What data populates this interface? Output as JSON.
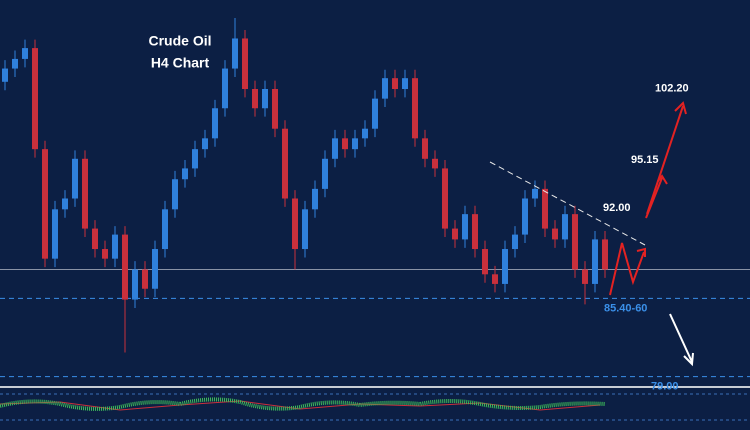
{
  "chart_data": {
    "type": "candlestick",
    "title": [
      "Crude Oil",
      "H4 Chart"
    ],
    "ylim": [
      78.3,
      109.3
    ],
    "up_color": "#2f80dc",
    "down_color": "#c9303c",
    "open": [
      103.5,
      104.6,
      105.4,
      106.3,
      97.9,
      88.8,
      92.9,
      93.8,
      97.1,
      91.3,
      89.6,
      88.8,
      90.8,
      85.4,
      87.9,
      86.3,
      89.6,
      92.9,
      95.4,
      96.3,
      97.9,
      98.8,
      101.3,
      104.6,
      107.1,
      102.9,
      101.3,
      102.9,
      99.6,
      93.8,
      89.6,
      92.9,
      94.6,
      97.1,
      98.8,
      97.9,
      98.8,
      99.6,
      102.1,
      103.8,
      102.9,
      103.8,
      98.8,
      97.1,
      96.3,
      91.3,
      90.4,
      92.5,
      89.6,
      87.5,
      86.7,
      89.6,
      90.8,
      93.8,
      94.6,
      91.3,
      90.4,
      92.5,
      87.9,
      86.7,
      90.4
    ],
    "high": [
      105.3,
      106.1,
      107.0,
      107.0,
      98.6,
      93.6,
      94.5,
      97.8,
      97.8,
      92.0,
      90.3,
      91.5,
      91.5,
      88.6,
      88.6,
      90.3,
      93.6,
      96.1,
      97.0,
      98.6,
      99.5,
      102.0,
      105.3,
      108.8,
      107.8,
      103.6,
      103.6,
      103.6,
      100.3,
      94.5,
      93.6,
      95.3,
      97.8,
      99.5,
      99.5,
      99.5,
      100.3,
      102.8,
      104.5,
      104.5,
      104.5,
      104.5,
      99.5,
      97.8,
      97.0,
      92.0,
      93.2,
      93.2,
      90.3,
      88.2,
      90.3,
      91.5,
      94.5,
      95.3,
      95.3,
      92.0,
      93.2,
      93.2,
      88.6,
      91.1,
      91.1
    ],
    "low": [
      102.8,
      103.9,
      104.7,
      97.2,
      88.1,
      88.1,
      92.2,
      93.1,
      90.6,
      88.9,
      88.1,
      88.1,
      81.0,
      84.7,
      85.6,
      85.6,
      88.9,
      92.2,
      94.7,
      95.6,
      97.2,
      98.1,
      100.6,
      103.9,
      102.2,
      100.6,
      100.6,
      98.9,
      93.1,
      87.9,
      88.9,
      92.2,
      93.9,
      96.4,
      97.2,
      97.2,
      98.1,
      98.9,
      101.4,
      102.2,
      102.2,
      98.1,
      96.4,
      95.6,
      90.6,
      89.7,
      89.7,
      88.9,
      86.8,
      86.0,
      86.0,
      88.9,
      90.1,
      93.1,
      90.6,
      89.7,
      89.7,
      87.2,
      85.0,
      86.0,
      87.2
    ],
    "close": [
      104.6,
      105.4,
      106.3,
      97.9,
      88.8,
      92.9,
      93.8,
      97.1,
      91.3,
      89.6,
      88.8,
      90.8,
      85.4,
      87.9,
      86.3,
      89.6,
      92.9,
      95.4,
      96.3,
      97.9,
      98.8,
      101.3,
      104.6,
      107.1,
      102.9,
      101.3,
      102.9,
      99.6,
      93.8,
      89.6,
      92.9,
      94.6,
      97.1,
      98.8,
      97.9,
      98.8,
      99.6,
      102.1,
      103.8,
      102.9,
      103.8,
      98.8,
      97.1,
      96.3,
      91.3,
      90.4,
      92.5,
      89.6,
      87.5,
      86.7,
      89.6,
      90.8,
      93.8,
      94.6,
      91.3,
      90.4,
      92.5,
      87.9,
      86.7,
      90.4,
      87.9
    ],
    "last_price": 87.9,
    "levels": [
      {
        "value": 85.5,
        "label": "85.40-60",
        "color": "#3a8fe8"
      },
      {
        "value": 79,
        "label": "79.00",
        "color": "#3a8fe8"
      }
    ],
    "targets": [
      {
        "value": 102.2,
        "label": "102.20"
      },
      {
        "value": 95.15,
        "label": "95.15"
      },
      {
        "value": 92,
        "label": "92.00"
      }
    ]
  }
}
